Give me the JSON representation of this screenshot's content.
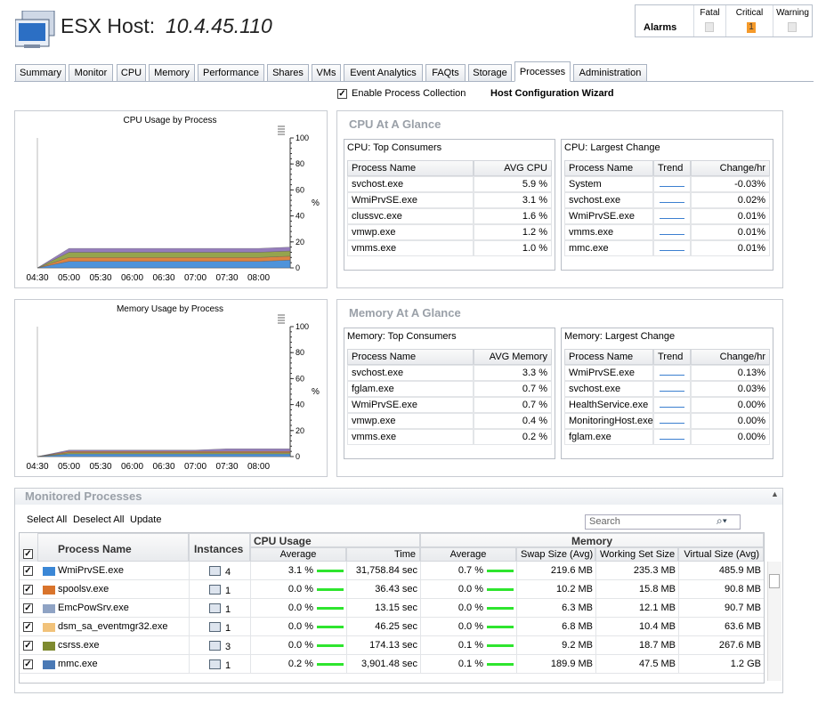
{
  "header": {
    "title": "ESX Host:",
    "host": "10.4.45.110"
  },
  "alarms": {
    "label": "Alarms",
    "columns": [
      "Fatal",
      "Critical",
      "Warning"
    ],
    "critical": 1
  },
  "tabs": [
    "Summary",
    "Monitor",
    "CPU",
    "Memory",
    "Performance",
    "Shares",
    "VMs",
    "Event Analytics",
    "FAQts",
    "Storage",
    "Processes",
    "Administration"
  ],
  "active_tab": 10,
  "options": {
    "enable_collection": "Enable Process Collection",
    "wizard": "Host Configuration Wizard"
  },
  "cpu_chart": {
    "type": "area",
    "title": "CPU Usage by Process",
    "ylabel": "%",
    "ylim": [
      0,
      100
    ],
    "yticks": [
      0,
      20,
      40,
      60,
      80,
      100
    ],
    "categories": [
      "04:30",
      "05:00",
      "05:30",
      "06:00",
      "06:30",
      "07:00",
      "07:30",
      "08:00",
      null
    ],
    "series": [
      {
        "color": "#3b87d6",
        "values": [
          0,
          5,
          5,
          5,
          5,
          5,
          5,
          5,
          6
        ]
      },
      {
        "color": "#d9742c",
        "values": [
          0,
          3,
          3,
          3,
          3,
          3,
          3,
          3,
          3
        ]
      },
      {
        "color": "#8a9a3a",
        "values": [
          0,
          4,
          4,
          4,
          4,
          4,
          4,
          4,
          4
        ]
      },
      {
        "color": "#8a6fb5",
        "values": [
          0,
          3,
          3,
          3,
          3,
          3,
          3,
          3,
          3
        ]
      }
    ]
  },
  "cpu_glance": {
    "title": "CPU At A Glance",
    "top": {
      "title": "CPU: Top Consumers",
      "columns": [
        "Process Name",
        "AVG CPU"
      ],
      "rows": [
        [
          "svchost.exe",
          "5.9 %"
        ],
        [
          "WmiPrvSE.exe",
          "3.1 %"
        ],
        [
          "clussvc.exe",
          "1.6 %"
        ],
        [
          "vmwp.exe",
          "1.2 %"
        ],
        [
          "vmms.exe",
          "1.0 %"
        ]
      ]
    },
    "change": {
      "title": "CPU: Largest Change",
      "columns": [
        "Process Name",
        "Trend",
        "Change/hr"
      ],
      "rows": [
        [
          "System",
          "-0.03%"
        ],
        [
          "svchost.exe",
          "0.02%"
        ],
        [
          "WmiPrvSE.exe",
          "0.01%"
        ],
        [
          "vmms.exe",
          "0.01%"
        ],
        [
          "mmc.exe",
          "0.01%"
        ]
      ]
    }
  },
  "memory_chart": {
    "type": "area",
    "title": "Memory Usage by Process",
    "ylabel": "%",
    "ylim": [
      0,
      100
    ],
    "yticks": [
      0,
      20,
      40,
      60,
      80,
      100
    ],
    "categories": [
      "04:30",
      "05:00",
      "05:30",
      "06:00",
      "06:30",
      "07:00",
      "07:30",
      "08:00",
      null
    ],
    "series": [
      {
        "color": "#3b87d6",
        "values": [
          0,
          2,
          2,
          2,
          2,
          2,
          2,
          2,
          2
        ]
      },
      {
        "color": "#8a9a3a",
        "values": [
          0,
          1,
          1,
          1,
          1,
          1,
          1,
          1,
          1
        ]
      },
      {
        "color": "#d9742c",
        "values": [
          0,
          1,
          1,
          1,
          1,
          1,
          1,
          1,
          1
        ]
      },
      {
        "color": "#8a6fb5",
        "values": [
          0,
          1,
          1,
          1,
          1,
          1,
          2,
          2,
          2
        ]
      }
    ]
  },
  "memory_glance": {
    "title": "Memory At A Glance",
    "top": {
      "title": "Memory: Top Consumers",
      "columns": [
        "Process Name",
        "AVG Memory"
      ],
      "rows": [
        [
          "svchost.exe",
          "3.3 %"
        ],
        [
          "fglam.exe",
          "0.7 %"
        ],
        [
          "WmiPrvSE.exe",
          "0.7 %"
        ],
        [
          "vmwp.exe",
          "0.4 %"
        ],
        [
          "vmms.exe",
          "0.2 %"
        ]
      ]
    },
    "change": {
      "title": "Memory: Largest Change",
      "columns": [
        "Process Name",
        "Trend",
        "Change/hr"
      ],
      "rows": [
        [
          "WmiPrvSE.exe",
          "0.13%"
        ],
        [
          "svchost.exe",
          "0.03%"
        ],
        [
          "HealthService.exe",
          "0.00%"
        ],
        [
          "MonitoringHost.exe",
          "0.00%"
        ],
        [
          "fglam.exe",
          "0.00%"
        ]
      ]
    }
  },
  "monitored": {
    "title": "Monitored Processes",
    "toolbar": [
      "Select All",
      "Deselect All",
      "Update"
    ],
    "search": "Search",
    "groups": [
      "CPU Usage",
      "Memory"
    ],
    "columns": [
      "Process Name",
      "Instances",
      "Average",
      "Time",
      "Average",
      "Swap Size (Avg)",
      "Working Set Size",
      "Virtual Size (Avg)"
    ],
    "rows": [
      {
        "color": "#3b87d6",
        "cells": [
          "WmiPrvSE.exe",
          "4",
          "3.1 %",
          "31,758.84 sec",
          "0.7 %",
          "219.6 MB",
          "235.3 MB",
          "485.9 MB"
        ]
      },
      {
        "color": "#d9742c",
        "cells": [
          "spoolsv.exe",
          "1",
          "0.0 %",
          "36.43 sec",
          "0.0 %",
          "10.2 MB",
          "15.8 MB",
          "90.8 MB"
        ]
      },
      {
        "color": "#8fa3c4",
        "cells": [
          "EmcPowSrv.exe",
          "1",
          "0.0 %",
          "13.15 sec",
          "0.0 %",
          "6.3 MB",
          "12.1 MB",
          "90.7 MB"
        ]
      },
      {
        "color": "#f1c27a",
        "cells": [
          "dsm_sa_eventmgr32.exe",
          "1",
          "0.0 %",
          "46.25 sec",
          "0.0 %",
          "6.8 MB",
          "10.4 MB",
          "63.6 MB"
        ]
      },
      {
        "color": "#7e8a2f",
        "cells": [
          "csrss.exe",
          "3",
          "0.0 %",
          "174.13 sec",
          "0.1 %",
          "9.2 MB",
          "18.7 MB",
          "267.6 MB"
        ]
      },
      {
        "color": "#4a79b5",
        "cells": [
          "mmc.exe",
          "1",
          "0.2 %",
          "3,901.48 sec",
          "0.1 %",
          "189.9 MB",
          "47.5 MB",
          "1.2 GB"
        ]
      }
    ]
  }
}
